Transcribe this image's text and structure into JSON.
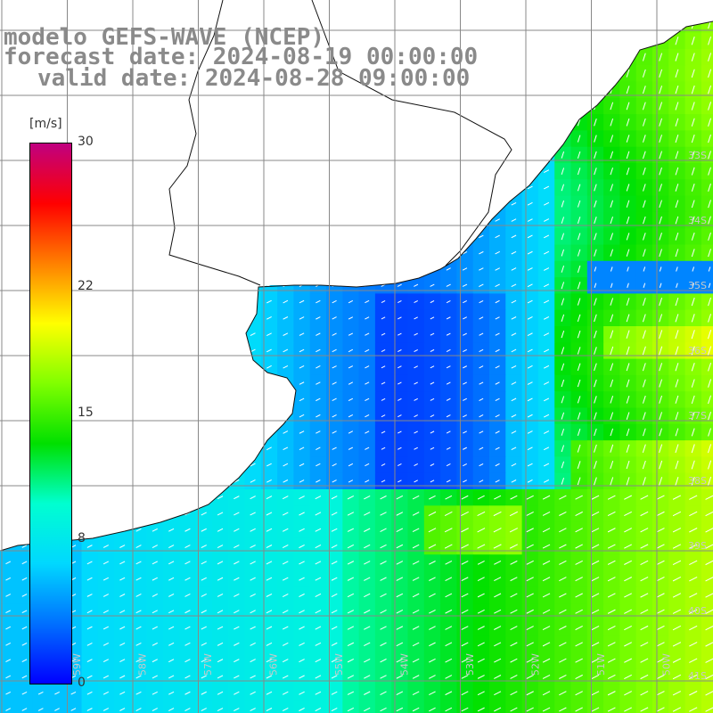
{
  "title": {
    "line1": "modelo GEFS-WAVE (NCEP)",
    "line2": "forecast date: 2024-08-19 00:00:00",
    "line3": "valid date: 2024-08-28 09:00:00"
  },
  "colorbar": {
    "unit": "[m/s]",
    "min": 0,
    "max": 30,
    "ticks": [
      {
        "value": 30,
        "label": "30"
      },
      {
        "value": 22,
        "label": "22"
      },
      {
        "value": 15,
        "label": "15"
      },
      {
        "value": 8,
        "label": "8"
      },
      {
        "value": 0,
        "label": "0"
      }
    ],
    "stops": [
      "#0000ff",
      "#0070ff",
      "#00d8ff",
      "#00ffd0",
      "#00e000",
      "#80ff00",
      "#ffff00",
      "#ff8000",
      "#ff0000",
      "#c00080"
    ]
  },
  "map": {
    "variable": "wind speed",
    "lon_range": [
      -60,
      -49
    ],
    "lat_range": [
      -42,
      -31
    ],
    "lat_labels": [
      "33S",
      "34S",
      "35S",
      "36S",
      "37S",
      "38S",
      "39S",
      "40S",
      "41S"
    ],
    "lon_labels": [
      "59W",
      "58W",
      "57W",
      "56W",
      "55W",
      "54W",
      "53W",
      "52W",
      "51W",
      "50W"
    ],
    "colors": {
      "land": "#ffffff",
      "coast": "#111111",
      "grid": "#888888",
      "arrow": "#ffffff"
    },
    "icons": [
      "wind-vector-arrow"
    ]
  }
}
